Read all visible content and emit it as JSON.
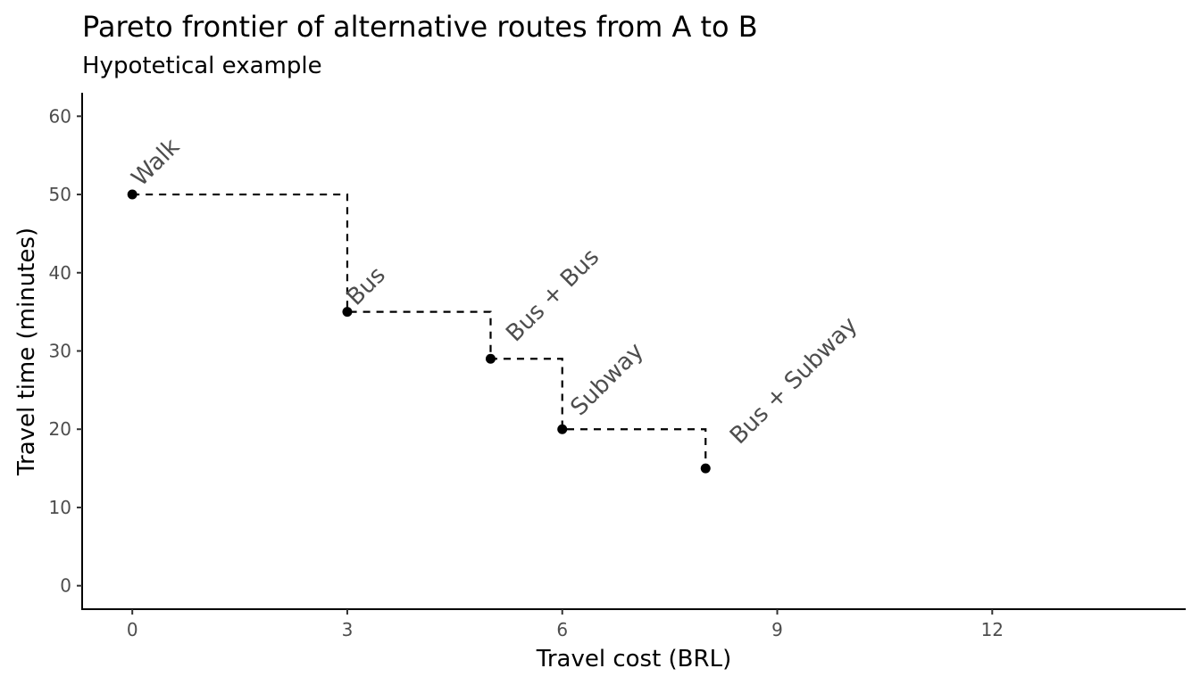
{
  "chart_data": {
    "type": "scatter",
    "title": "Pareto frontier of alternative routes from A to B",
    "subtitle": "Hypotetical example",
    "xlabel": "Travel cost (BRL)",
    "ylabel": "Travel time (minutes)",
    "xlim": [
      -0.7,
      14.7
    ],
    "ylim": [
      -3,
      63
    ],
    "x_ticks": [
      0,
      3,
      6,
      9,
      12
    ],
    "y_ticks": [
      0,
      10,
      20,
      30,
      40,
      50,
      60
    ],
    "grid": false,
    "step_line": "dashed",
    "point_color": "#000000",
    "label_color": "#4d4d4d",
    "points": [
      {
        "label": "Walk",
        "x": 0,
        "y": 50
      },
      {
        "label": "Bus",
        "x": 3,
        "y": 35
      },
      {
        "label": "Bus + Bus",
        "x": 5,
        "y": 29
      },
      {
        "label": "Subway",
        "x": 6,
        "y": 20
      },
      {
        "label": "Bus + Subway",
        "x": 8,
        "y": 15
      }
    ]
  }
}
